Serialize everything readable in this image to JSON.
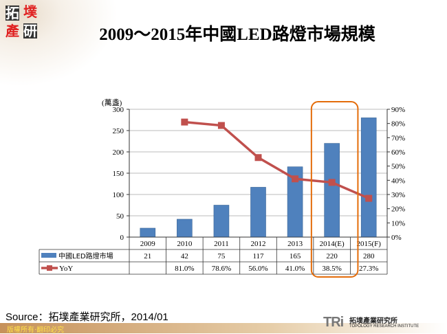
{
  "logo": {
    "chars": [
      "拓",
      "墣",
      "產",
      "研"
    ]
  },
  "title": "2009～2015年中國LED路燈市場規模",
  "chart_data": {
    "type": "bar+line",
    "categories": [
      "2009",
      "2010",
      "2011",
      "2012",
      "2013",
      "2014(E)",
      "2015(F)"
    ],
    "series": [
      {
        "name": "中國LED路燈市場",
        "type": "bar",
        "axis": "left",
        "color": "#4f81bd",
        "values": [
          21,
          42,
          75,
          117,
          165,
          220,
          280
        ]
      },
      {
        "name": "YoY",
        "type": "line",
        "axis": "right",
        "color": "#c0504d",
        "values": [
          null,
          81.0,
          78.6,
          56.0,
          41.0,
          38.5,
          27.3
        ],
        "labels": [
          "",
          "81.0%",
          "78.6%",
          "56.0%",
          "41.0%",
          "38.5%",
          "27.3%"
        ]
      }
    ],
    "ylabel": "(萬盞)",
    "ylim": [
      0,
      300
    ],
    "yticks": [
      0,
      50,
      100,
      150,
      200,
      250,
      300
    ],
    "y2lim": [
      0,
      90
    ],
    "y2ticks": [
      "0%",
      "10%",
      "20%",
      "30%",
      "40%",
      "50%",
      "60%",
      "70%",
      "80%",
      "90%"
    ],
    "grid": true,
    "highlight": {
      "category": "2014(E)",
      "color": "#e46c0a"
    },
    "data_table": true
  },
  "source": "Source：拓墣產業研究所，2014/01",
  "footer": {
    "copyright": "版權所有‧翻印必究",
    "brand": "TRi",
    "brand_cn": "拓墣產業研究所",
    "brand_en": "TOPOLOGY RESEARCH INSTITUTE"
  }
}
